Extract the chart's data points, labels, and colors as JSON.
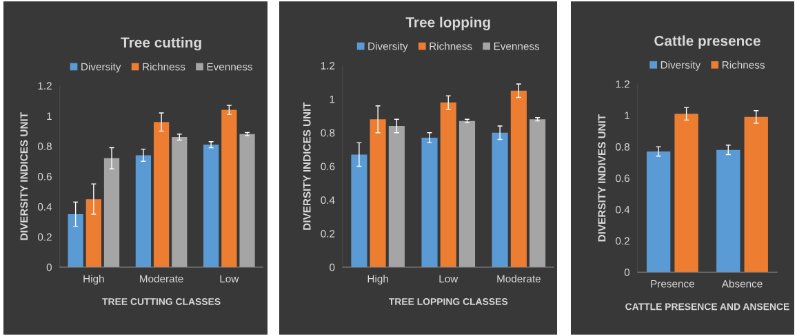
{
  "chart_data": [
    {
      "type": "bar",
      "title": "Tree cutting",
      "xlabel": "TREE CUTTING CLASSES",
      "ylabel": "DIVERSITY INDICES UNIT",
      "categories": [
        "High",
        "Moderate",
        "Low"
      ],
      "series": [
        {
          "name": "Diversity",
          "color": "#5b9bd5",
          "values": [
            0.35,
            0.74,
            0.81
          ],
          "errors": [
            0.08,
            0.04,
            0.02
          ]
        },
        {
          "name": "Richness",
          "color": "#ed7d31",
          "values": [
            0.45,
            0.96,
            1.04
          ],
          "errors": [
            0.1,
            0.06,
            0.03
          ]
        },
        {
          "name": "Evenness",
          "color": "#a5a5a5",
          "values": [
            0.72,
            0.86,
            0.88
          ],
          "errors": [
            0.07,
            0.02,
            0.01
          ]
        }
      ],
      "ylim": [
        0,
        1.2
      ],
      "yticks": [
        0,
        0.2,
        0.4,
        0.6,
        0.8,
        1,
        1.2
      ],
      "legend": "top",
      "grid": false
    },
    {
      "type": "bar",
      "title": "Tree lopping",
      "xlabel": "TREE LOPPING CLASSES",
      "ylabel": "DIVERSITY INDICES UNIT",
      "categories": [
        "High",
        "Low",
        "Moderate"
      ],
      "series": [
        {
          "name": "Diversity",
          "color": "#5b9bd5",
          "values": [
            0.67,
            0.77,
            0.8
          ],
          "errors": [
            0.07,
            0.03,
            0.04
          ]
        },
        {
          "name": "Richness",
          "color": "#ed7d31",
          "values": [
            0.88,
            0.98,
            1.05
          ],
          "errors": [
            0.08,
            0.04,
            0.04
          ]
        },
        {
          "name": "Evenness",
          "color": "#a5a5a5",
          "values": [
            0.84,
            0.87,
            0.88
          ],
          "errors": [
            0.04,
            0.01,
            0.01
          ]
        }
      ],
      "ylim": [
        0,
        1.2
      ],
      "yticks": [
        0,
        0.2,
        0.4,
        0.6,
        0.8,
        1,
        1.2
      ],
      "legend": "top",
      "grid": false
    },
    {
      "type": "bar",
      "title": "Cattle presence",
      "xlabel": "CATTLE PRESENCE AND ANSENCE",
      "ylabel": "DIVERSITY INDIVES UNIT",
      "categories": [
        "Presence",
        "Absence"
      ],
      "series": [
        {
          "name": "Diversity",
          "color": "#5b9bd5",
          "values": [
            0.77,
            0.78
          ],
          "errors": [
            0.03,
            0.03
          ]
        },
        {
          "name": "Richness",
          "color": "#ed7d31",
          "values": [
            1.01,
            0.99
          ],
          "errors": [
            0.04,
            0.04
          ]
        }
      ],
      "ylim": [
        0,
        1.2
      ],
      "yticks": [
        0,
        0.2,
        0.4,
        0.6,
        0.8,
        1,
        1.2
      ],
      "legend": "top",
      "grid": false
    }
  ]
}
